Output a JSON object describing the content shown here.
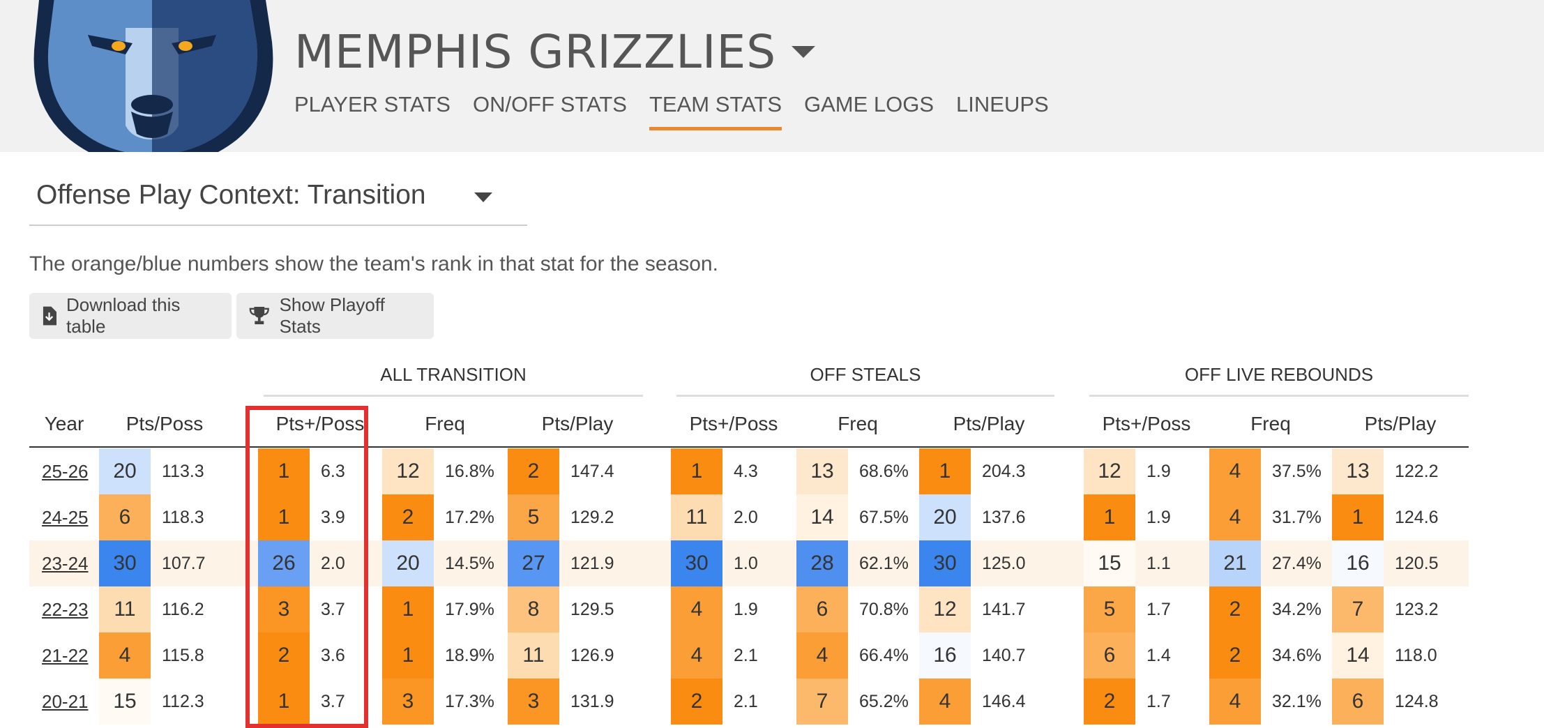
{
  "header": {
    "team_name": "MEMPHIS GRIZZLIES",
    "nav_tabs": [
      "PLAYER STATS",
      "ON/OFF STATS",
      "TEAM STATS",
      "GAME LOGS",
      "LINEUPS"
    ],
    "active_tab": "TEAM STATS"
  },
  "context_select": {
    "label": "Offense Play Context: Transition"
  },
  "note": "The orange/blue numbers show the team's rank in that stat for the season.",
  "buttons": {
    "download": "Download this table",
    "playoff": "Show Playoff Stats"
  },
  "table": {
    "groups": [
      "ALL TRANSITION",
      "OFF STEALS",
      "OFF LIVE REBOUNDS"
    ],
    "columns": [
      "Year",
      "Pts/Poss",
      "Pts+/Poss",
      "Freq",
      "Pts/Play",
      "Pts+/Poss",
      "Freq",
      "Pts/Play",
      "Pts+/Poss",
      "Freq",
      "Pts/Play"
    ],
    "rows": [
      {
        "year": "25-26",
        "highlighted": false,
        "cells": [
          [
            "20",
            "113.3"
          ],
          [
            "1",
            "6.3"
          ],
          [
            "12",
            "16.8%"
          ],
          [
            "2",
            "147.4"
          ],
          [
            "1",
            "4.3"
          ],
          [
            "13",
            "68.6%"
          ],
          [
            "1",
            "204.3"
          ],
          [
            "12",
            "1.9"
          ],
          [
            "4",
            "37.5%"
          ],
          [
            "13",
            "122.2"
          ]
        ]
      },
      {
        "year": "24-25",
        "highlighted": false,
        "cells": [
          [
            "6",
            "118.3"
          ],
          [
            "1",
            "3.9"
          ],
          [
            "2",
            "17.2%"
          ],
          [
            "5",
            "129.2"
          ],
          [
            "11",
            "2.0"
          ],
          [
            "14",
            "67.5%"
          ],
          [
            "20",
            "137.6"
          ],
          [
            "1",
            "1.9"
          ],
          [
            "4",
            "31.7%"
          ],
          [
            "1",
            "124.6"
          ]
        ]
      },
      {
        "year": "23-24",
        "highlighted": true,
        "cells": [
          [
            "30",
            "107.7"
          ],
          [
            "26",
            "2.0"
          ],
          [
            "20",
            "14.5%"
          ],
          [
            "27",
            "121.9"
          ],
          [
            "30",
            "1.0"
          ],
          [
            "28",
            "62.1%"
          ],
          [
            "30",
            "125.0"
          ],
          [
            "15",
            "1.1"
          ],
          [
            "21",
            "27.4%"
          ],
          [
            "16",
            "120.5"
          ]
        ]
      },
      {
        "year": "22-23",
        "highlighted": false,
        "cells": [
          [
            "11",
            "116.2"
          ],
          [
            "3",
            "3.7"
          ],
          [
            "1",
            "17.9%"
          ],
          [
            "8",
            "129.5"
          ],
          [
            "4",
            "1.9"
          ],
          [
            "6",
            "70.8%"
          ],
          [
            "12",
            "141.7"
          ],
          [
            "5",
            "1.7"
          ],
          [
            "2",
            "34.2%"
          ],
          [
            "7",
            "123.2"
          ]
        ]
      },
      {
        "year": "21-22",
        "highlighted": false,
        "cells": [
          [
            "4",
            "115.8"
          ],
          [
            "2",
            "3.6"
          ],
          [
            "1",
            "18.9%"
          ],
          [
            "11",
            "126.9"
          ],
          [
            "4",
            "2.1"
          ],
          [
            "4",
            "66.4%"
          ],
          [
            "16",
            "140.7"
          ],
          [
            "6",
            "1.4"
          ],
          [
            "2",
            "34.6%"
          ],
          [
            "14",
            "118.0"
          ]
        ]
      },
      {
        "year": "20-21",
        "highlighted": false,
        "cells": [
          [
            "15",
            "112.3"
          ],
          [
            "1",
            "3.7"
          ],
          [
            "3",
            "17.3%"
          ],
          [
            "3",
            "131.9"
          ],
          [
            "2",
            "2.1"
          ],
          [
            "7",
            "65.2%"
          ],
          [
            "4",
            "146.4"
          ],
          [
            "2",
            "1.7"
          ],
          [
            "4",
            "32.1%"
          ],
          [
            "6",
            "124.8"
          ]
        ]
      }
    ]
  },
  "colors": {
    "accent": "#e9892b",
    "annotation_box": "#e53030",
    "highlight_row": "#fdf4e7"
  }
}
